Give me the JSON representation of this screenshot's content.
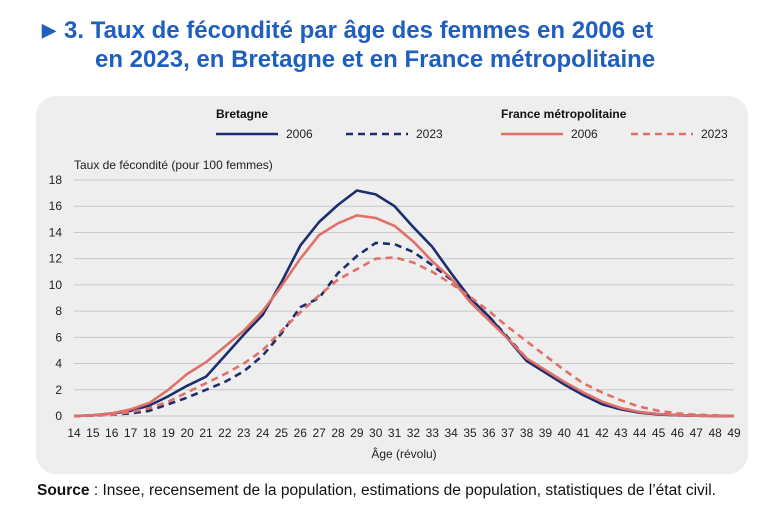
{
  "title": {
    "prefix": "3.",
    "line1": "Taux de fécondité par âge des femmes en 2006 et",
    "line2": "en 2023, en Bretagne et en France métropolitaine"
  },
  "source": {
    "label": "Source",
    "text": " : Insee, recensement de la population, estimations de population, statistiques de l’état civil."
  },
  "colors": {
    "title": "#1f5fbf",
    "bretagne": "#1c2e6e",
    "france": "#e07068",
    "panel": "#eeeeee"
  },
  "chart_data": {
    "type": "line",
    "ylabel": "Taux de fécondité (pour 100 femmes)",
    "xlabel": "Âge (révolu)",
    "ylim": [
      0,
      18
    ],
    "yticks": [
      0,
      2,
      4,
      6,
      8,
      10,
      12,
      14,
      16,
      18
    ],
    "grid": true,
    "legend_position": "top",
    "legend_groups": [
      {
        "title": "Bretagne",
        "series": [
          0,
          1
        ]
      },
      {
        "title": "France métropolitaine",
        "series": [
          2,
          3
        ]
      }
    ],
    "x": [
      14,
      15,
      16,
      17,
      18,
      19,
      20,
      21,
      22,
      23,
      24,
      25,
      26,
      27,
      28,
      29,
      30,
      31,
      32,
      33,
      34,
      35,
      36,
      37,
      38,
      39,
      40,
      41,
      42,
      43,
      44,
      45,
      46,
      47,
      48,
      49
    ],
    "series": [
      {
        "name": "2006",
        "group": "Bretagne",
        "color": "#1c2e6e",
        "dashed": false,
        "values": [
          0,
          0.05,
          0.2,
          0.4,
          0.8,
          1.5,
          2.3,
          3.0,
          4.6,
          6.2,
          7.7,
          10.2,
          13.0,
          14.8,
          16.1,
          17.2,
          16.9,
          16.0,
          14.4,
          12.9,
          10.9,
          9.0,
          7.6,
          5.9,
          4.2,
          3.3,
          2.4,
          1.6,
          0.9,
          0.5,
          0.25,
          0.12,
          0.05,
          0.02,
          0.01,
          0
        ]
      },
      {
        "name": "2023",
        "group": "Bretagne",
        "color": "#1c2e6e",
        "dashed": true,
        "values": [
          0,
          0.02,
          0.1,
          0.2,
          0.4,
          0.9,
          1.4,
          2.0,
          2.6,
          3.4,
          4.6,
          6.3,
          8.3,
          9.0,
          10.9,
          12.2,
          13.2,
          13.1,
          12.5,
          11.5,
          10.4,
          9.0,
          7.6,
          6.0,
          4.4,
          3.4,
          2.5,
          1.6,
          1.0,
          0.6,
          0.3,
          0.15,
          0.06,
          0.02,
          0.01,
          0
        ]
      },
      {
        "name": "2006",
        "group": "France métropolitaine",
        "color": "#e07068",
        "dashed": false,
        "values": [
          0,
          0.05,
          0.2,
          0.5,
          1.0,
          2.0,
          3.2,
          4.1,
          5.3,
          6.5,
          8.0,
          9.9,
          12.0,
          13.8,
          14.7,
          15.3,
          15.1,
          14.5,
          13.3,
          11.8,
          10.5,
          8.7,
          7.3,
          5.9,
          4.4,
          3.5,
          2.6,
          1.8,
          1.1,
          0.6,
          0.3,
          0.15,
          0.06,
          0.02,
          0.01,
          0
        ]
      },
      {
        "name": "2023",
        "group": "France métropolitaine",
        "color": "#e07068",
        "dashed": true,
        "values": [
          0,
          0.03,
          0.1,
          0.3,
          0.6,
          1.1,
          1.8,
          2.5,
          3.2,
          4.0,
          5.0,
          6.5,
          7.9,
          9.2,
          10.4,
          11.2,
          12.0,
          12.1,
          11.7,
          11.0,
          10.1,
          9.1,
          8.0,
          6.8,
          5.7,
          4.6,
          3.5,
          2.5,
          1.8,
          1.2,
          0.7,
          0.4,
          0.2,
          0.1,
          0.05,
          0
        ]
      }
    ]
  }
}
